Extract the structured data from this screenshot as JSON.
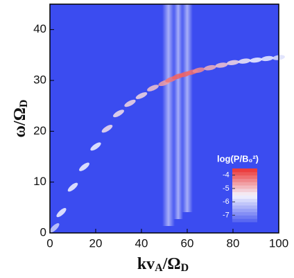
{
  "chart_data": {
    "type": "heatmap",
    "xlabel": [
      "kv",
      "A",
      "/Ω",
      "D"
    ],
    "ylabel": [
      "ω/Ω",
      "D"
    ],
    "xlim": [
      0,
      100
    ],
    "xticks": [
      0,
      20,
      40,
      60,
      80,
      100
    ],
    "ylim": [
      0,
      45
    ],
    "yticks": [
      0,
      10,
      20,
      30,
      40
    ],
    "background": "#3b4cf0",
    "series": [
      {
        "color": "#e83a3a",
        "x": [
          2,
          5,
          10,
          15,
          20,
          25,
          30,
          35,
          40,
          45,
          50,
          53,
          56,
          59,
          62,
          65,
          70,
          75,
          80,
          85,
          90,
          95,
          100
        ],
        "values": [
          1,
          4,
          9,
          13,
          17,
          20.5,
          23.5,
          25.5,
          27,
          28.5,
          29.5,
          30.2,
          30.8,
          31.2,
          31.6,
          32,
          32.5,
          33,
          33.5,
          33.8,
          34,
          34.3,
          34.5
        ],
        "levels": [
          -6,
          -5.5,
          -5.5,
          -5.5,
          -5.5,
          -5.3,
          -5.3,
          -5.2,
          -5.2,
          -5,
          -4.6,
          -4.2,
          -4,
          -4,
          -4.1,
          -4.4,
          -4.8,
          -5,
          -5.2,
          -5.4,
          -5.5,
          -5.6,
          -5.8
        ]
      }
    ],
    "colorbar": {
      "title": "log(P/B₀²)",
      "clim": [
        -7.5,
        -3.5
      ],
      "ticks": [
        -4,
        -5,
        -6,
        -7
      ]
    }
  }
}
